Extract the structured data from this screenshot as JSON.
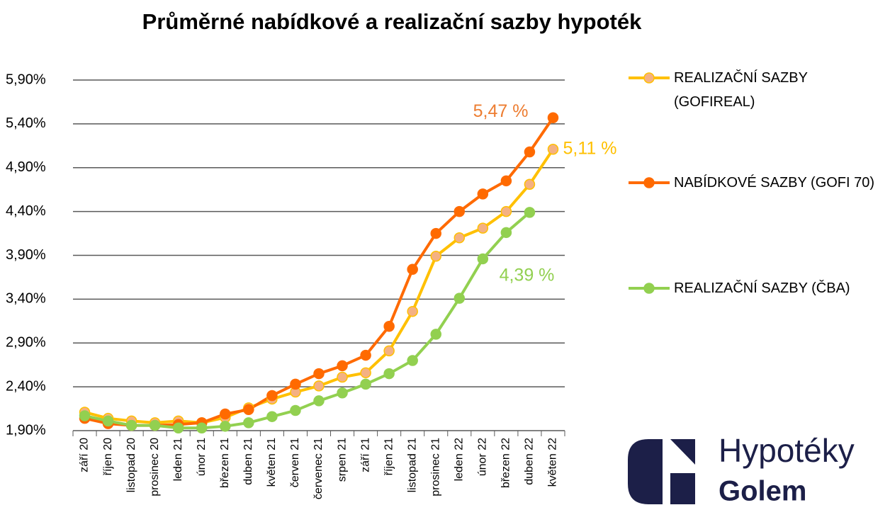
{
  "chart_data": {
    "type": "line",
    "title": "Průměrné nabídkové a realizační sazby hypoték",
    "categories": [
      "září 20",
      "říjen 20",
      "listopad 20",
      "prosinec 20",
      "leden 21",
      "únor 21",
      "březen 21",
      "duben 21",
      "květen 21",
      "červen 21",
      "červenec 21",
      "srpen 21",
      "září 21",
      "říjen 21",
      "listopad 21",
      "prosinec 21",
      "leden 22",
      "únor 22",
      "březen 22",
      "duben 22",
      "květen 22"
    ],
    "series": [
      {
        "name": "REALIZAČNÍ SAZBY (GOFIREAL)",
        "color": "#ffc000",
        "marker_color": "#f4b183",
        "values": [
          2.11,
          2.04,
          2.01,
          1.99,
          2.01,
          1.99,
          2.05,
          2.16,
          2.26,
          2.34,
          2.41,
          2.51,
          2.56,
          2.81,
          3.26,
          3.89,
          4.1,
          4.21,
          4.4,
          4.71,
          5.11
        ]
      },
      {
        "name": "NABÍDKOVÉ SAZBY (GOFI 70)",
        "color": "#ff6a00",
        "marker_color": "#ff6a00",
        "values": [
          2.04,
          1.98,
          1.96,
          1.96,
          1.97,
          1.99,
          2.09,
          2.14,
          2.3,
          2.43,
          2.55,
          2.64,
          2.76,
          3.09,
          3.74,
          4.15,
          4.4,
          4.6,
          4.75,
          5.08,
          5.47
        ]
      },
      {
        "name": "REALIZAČNÍ SAZBY (ČBA)",
        "color": "#92d050",
        "marker_color": "#92d050",
        "values": [
          2.07,
          2.01,
          1.96,
          1.96,
          1.93,
          1.93,
          1.95,
          1.99,
          2.06,
          2.13,
          2.24,
          2.33,
          2.43,
          2.55,
          2.7,
          3.0,
          3.41,
          3.86,
          4.16,
          4.39,
          null
        ]
      }
    ],
    "annotations": [
      {
        "text": "5,47 %",
        "color": "#ed7d31"
      },
      {
        "text": "5,11 %",
        "color": "#ffc000"
      },
      {
        "text": "4,39 %",
        "color": "#92d050"
      }
    ],
    "ylim": [
      1.9,
      5.9
    ],
    "yticks": [
      {
        "value": 1.9,
        "label": "1,90%"
      },
      {
        "value": 2.4,
        "label": "2,40%"
      },
      {
        "value": 2.9,
        "label": "2,90%"
      },
      {
        "value": 3.4,
        "label": "3,40%"
      },
      {
        "value": 3.9,
        "label": "3,90%"
      },
      {
        "value": 4.4,
        "label": "4,40%"
      },
      {
        "value": 4.9,
        "label": "4,90%"
      },
      {
        "value": 5.4,
        "label": "5,40%"
      },
      {
        "value": 5.9,
        "label": "5,90%"
      }
    ],
    "grid": true,
    "legend": "right"
  },
  "logo": {
    "line1": "Hypotéky",
    "line2": "Golem"
  }
}
